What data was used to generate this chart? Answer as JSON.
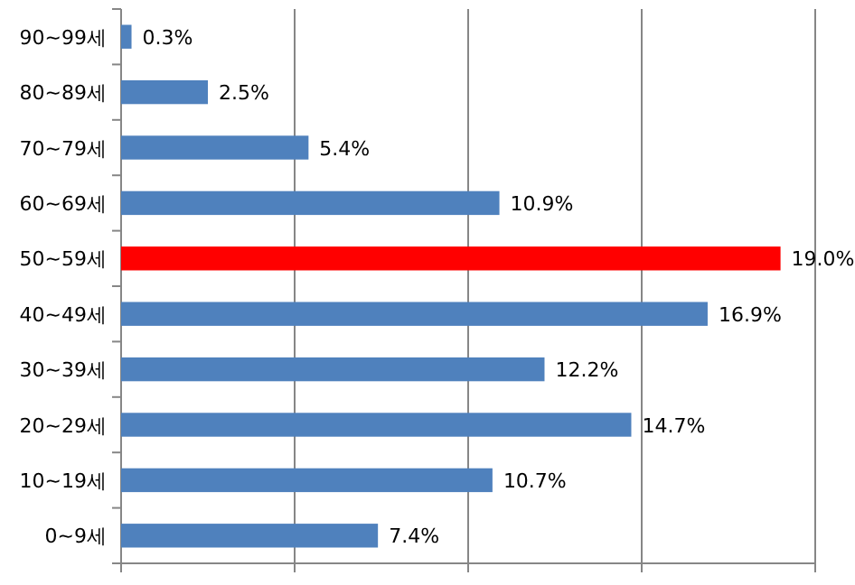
{
  "chart_data": {
    "type": "bar",
    "orientation": "horizontal",
    "categories": [
      "90~99세",
      "80~89세",
      "70~79세",
      "60~69세",
      "50~59세",
      "40~49세",
      "30~39세",
      "20~29세",
      "10~19세",
      "0~9세"
    ],
    "values": [
      0.3,
      2.5,
      5.4,
      10.9,
      19.0,
      16.9,
      12.2,
      14.7,
      10.7,
      7.4
    ],
    "colors": [
      "#4f81bd",
      "#4f81bd",
      "#4f81bd",
      "#4f81bd",
      "#ff0000",
      "#4f81bd",
      "#4f81bd",
      "#4f81bd",
      "#4f81bd",
      "#4f81bd"
    ],
    "value_labels": [
      "0.3%",
      "2.5%",
      "5.4%",
      "10.9%",
      "19.0%",
      "16.9%",
      "12.2%",
      "14.7%",
      "10.7%",
      "7.4%"
    ],
    "xlim": [
      0,
      20
    ],
    "xticks": [
      {
        "value": 0,
        "label": null
      },
      {
        "value": 5,
        "label": null
      },
      {
        "value": 10,
        "label": null
      },
      {
        "value": 15,
        "label": null
      },
      {
        "value": 20,
        "label": null
      }
    ],
    "grid": "x",
    "tick_labels": "y"
  }
}
